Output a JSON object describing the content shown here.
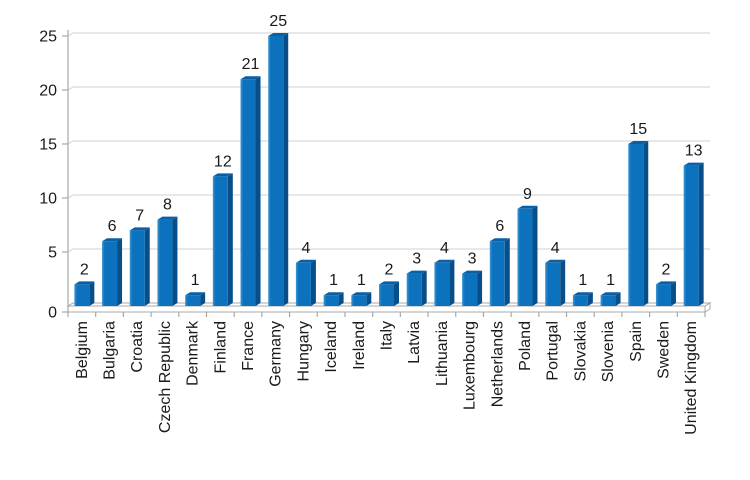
{
  "chart_data": {
    "type": "bar",
    "style": "3d-column",
    "title": "",
    "xlabel": "",
    "ylabel": "",
    "categories": [
      "Belgium",
      "Bulgaria",
      "Croatia",
      "Czech Republic",
      "Denmark",
      "Finland",
      "France",
      "Germany",
      "Hungary",
      "Iceland",
      "Ireland",
      "Italy",
      "Latvia",
      "Lithuania",
      "Luxembourg",
      "Netherlands",
      "Poland",
      "Portugal",
      "Slovakia",
      "Slovenia",
      "Spain",
      "Sweden",
      "United Kingdom"
    ],
    "values": [
      2,
      6,
      7,
      8,
      1,
      12,
      21,
      25,
      4,
      1,
      1,
      2,
      3,
      4,
      3,
      6,
      9,
      4,
      1,
      1,
      15,
      2,
      13
    ],
    "data_labels_shown": true,
    "ylim": [
      0,
      25
    ],
    "yticks": [
      0,
      5,
      10,
      15,
      20,
      25
    ],
    "grid": true,
    "legend": false,
    "colors": {
      "bar_front": "#0C72BE",
      "bar_front_highlight": "#3F97D3",
      "bar_top": "#0B5FA4",
      "bar_side": "#084F89",
      "gridline": "#D9D9D9",
      "axis": "#A8A8A8",
      "text": "#1A1A1A",
      "background": "#FFFFFF"
    }
  }
}
